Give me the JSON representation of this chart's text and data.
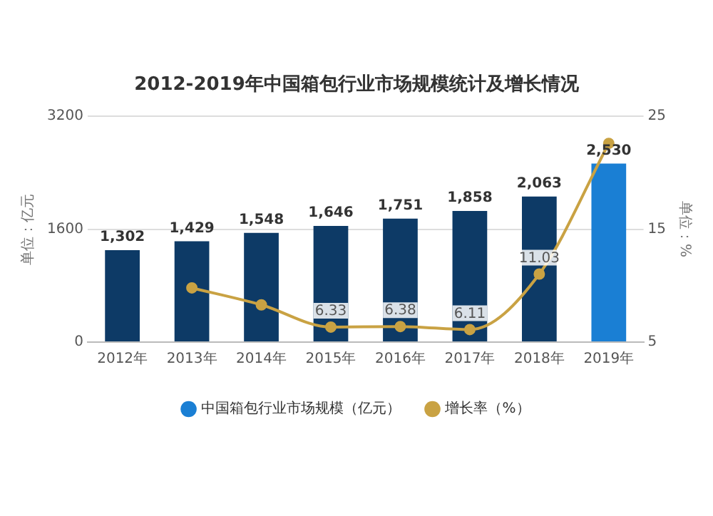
{
  "chart_data": {
    "type": "bar",
    "title": "2012-2019年中国箱包行业市场规模统计及增长情况",
    "ylabel": "单位：亿元",
    "y2label": "单位：%",
    "categories": [
      "2012年",
      "2013年",
      "2014年",
      "2015年",
      "2016年",
      "2017年",
      "2018年",
      "2019年"
    ],
    "series": [
      {
        "name": "中国箱包行业市场规模（亿元）",
        "color": "#1a7fd4",
        "colors": [
          "#0d3a66",
          "#0d3a66",
          "#0d3a66",
          "#0d3a66",
          "#0d3a66",
          "#0d3a66",
          "#0d3a66",
          "#1a7fd4"
        ],
        "values": [
          1302,
          1429,
          1548,
          1646,
          1751,
          1858,
          2063,
          2530
        ],
        "value_labels": [
          "1,302",
          "1,429",
          "1,548",
          "1,646",
          "1,751",
          "1,858",
          "2,063",
          "2,530"
        ]
      },
      {
        "name": "增长率（%）",
        "type": "line",
        "axis": "y2",
        "color": "#c9a243",
        "values": [
          null,
          9.8,
          8.3,
          6.33,
          6.38,
          6.11,
          11.03,
          22.6
        ],
        "value_labels": [
          null,
          null,
          null,
          "6.33",
          "6.38",
          "6.11",
          "11.03",
          null
        ]
      }
    ],
    "ylim": [
      0,
      3200
    ],
    "yticks": [
      0,
      1600,
      3200
    ],
    "y2lim": [
      5,
      25
    ],
    "y2ticks": [
      5,
      15,
      25
    ],
    "grid": "y",
    "legend": "bottom",
    "marker": "circle"
  }
}
